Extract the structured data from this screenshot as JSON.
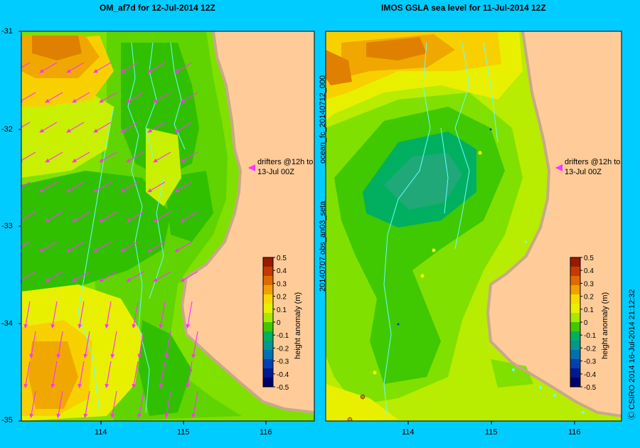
{
  "left_panel": {
    "title": "OM_af7d for 12-Jul-2014 12Z",
    "annotation_line1": "drifters @12h to",
    "annotation_line2": "13-Jul 00Z"
  },
  "right_panel": {
    "title": "IMOS GSLA sea level  for 11-Jul-2014 12Z",
    "annotation_line1": "drifters @12h to",
    "annotation_line2": "13-Jul 00Z",
    "side_label_top": "ocean_fc_20140712_000",
    "side_label_bottom": "20140707 obs_an03_seta"
  },
  "lat_ticks": [
    "-31",
    "-32",
    "-33",
    "-34",
    "-35"
  ],
  "lon_ticks": [
    "114",
    "115",
    "116"
  ],
  "colorbar": {
    "label": "height anomaly (m)",
    "ticks": [
      "0.5",
      "0.4",
      "0.3",
      "0.2",
      "0.1",
      "0",
      "-0.1",
      "-0.2",
      "-0.3",
      "-0.4",
      "-0.5"
    ],
    "colors": [
      "#9a1a00",
      "#c43a00",
      "#e06a00",
      "#f0a000",
      "#f8d800",
      "#e8f000",
      "#a8e800",
      "#40c800",
      "#00b060",
      "#009890",
      "#0070b0",
      "#0040b0",
      "#001a90",
      "#00006a"
    ]
  },
  "credit": "Ⓒ CSIRO 2014   16-Jul-2014 21:12:32",
  "colors": {
    "land": "#ffcc99",
    "coast": "#c8a888",
    "background": "#00ccff",
    "arrow": "#ff33ff",
    "drifter_track": "#66ffff"
  }
}
